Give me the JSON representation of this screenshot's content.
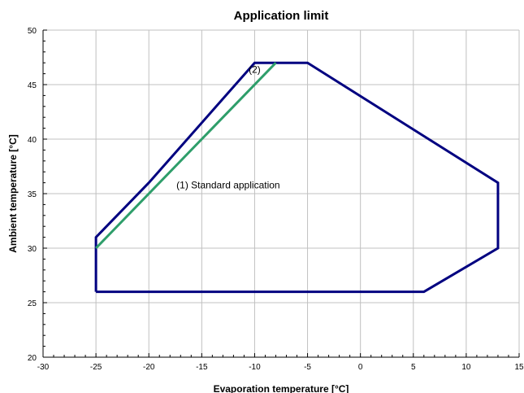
{
  "chart_data": {
    "type": "line",
    "title": "Application limit",
    "xlabel": "Evaporation temperature  [°C]",
    "ylabel": "Ambient temperature [°C]",
    "xlim": [
      -30,
      15
    ],
    "ylim": [
      20,
      50
    ],
    "xticks": [
      "-30",
      "-25",
      "-20",
      "-15",
      "-10",
      "-5",
      "0",
      "5",
      "10",
      "15"
    ],
    "yticks": [
      "20",
      "25",
      "30",
      "35",
      "40",
      "45",
      "50"
    ],
    "grid": true,
    "series": [
      {
        "color": "#000080",
        "points": [
          [
            -25,
            26
          ],
          [
            -25,
            31
          ],
          [
            -20,
            36
          ],
          [
            -10,
            47
          ],
          [
            -5,
            47
          ],
          [
            13,
            36
          ],
          [
            13,
            30
          ],
          [
            6,
            26
          ],
          [
            -25,
            26
          ]
        ]
      },
      {
        "color": "#2e9e6a",
        "points": [
          [
            -25,
            30
          ],
          [
            -8,
            47
          ]
        ]
      }
    ],
    "annotations": [
      {
        "text": "(1) Standard application",
        "x": -12.5,
        "y": 35.5
      },
      {
        "text": "(2)",
        "x": -10,
        "y": 46.1
      }
    ]
  }
}
